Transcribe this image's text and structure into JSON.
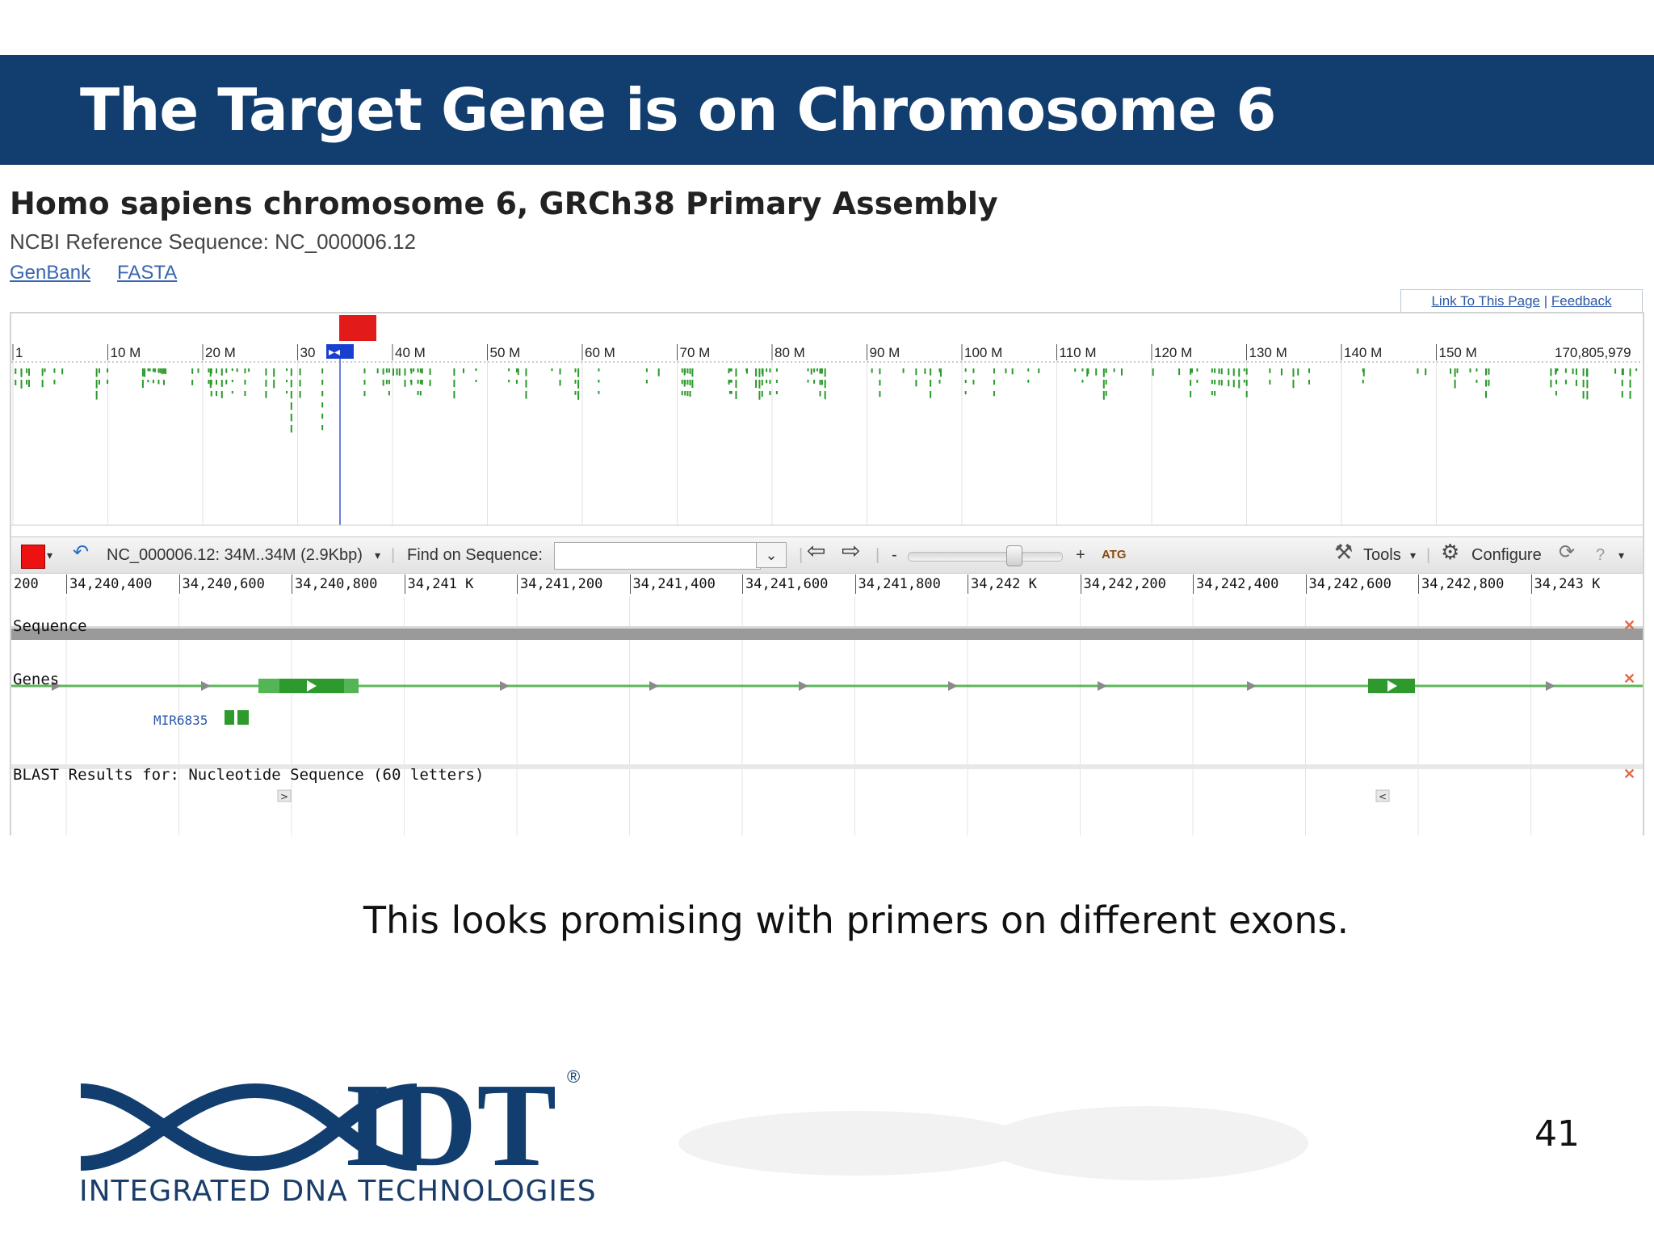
{
  "slide": {
    "title": "The Target Gene is on Chromosome 6",
    "caption": "This looks promising with primers on different exons.",
    "page_number": "41",
    "logo_text": "IDT",
    "logo_sub": "INTEGRATED DNA TECHNOLOGIES",
    "header_color": "#123d6f"
  },
  "ncbi": {
    "title": "Homo sapiens chromosome 6, GRCh38 Primary Assembly",
    "reference": "NCBI Reference Sequence: NC_000006.12",
    "formats": [
      "GenBank",
      "FASTA"
    ],
    "top_links": [
      "Link To This Page",
      "Feedback"
    ]
  },
  "overview": {
    "ticks": [
      "1",
      "10 M",
      "20 M",
      "30",
      "40 M",
      "50 M",
      "60 M",
      "70 M",
      "80 M",
      "90 M",
      "100 M",
      "110 M",
      "120 M",
      "130 M",
      "140 M",
      "150 M",
      "170,805,979"
    ]
  },
  "toolbar": {
    "region": "NC_000006.12: 34M..34M (2.9Kbp)",
    "find_label": "Find on Sequence:",
    "find_value": "",
    "zoom_minus": "-",
    "zoom_plus": "+",
    "atg_label": "ATG",
    "tools_label": "Tools",
    "configure_label": "Configure",
    "help_label": "?"
  },
  "ruler": [
    "200",
    "34,240,400",
    "34,240,600",
    "34,240,800",
    "34,241 K",
    "34,241,200",
    "34,241,400",
    "34,241,600",
    "34,241,800",
    "34,242 K",
    "34,242,200",
    "34,242,400",
    "34,242,600",
    "34,242,800",
    "34,243 K"
  ],
  "tracks": {
    "sequence": "Sequence",
    "genes": "Genes",
    "gene_label": "MIR6835",
    "blast": "BLAST Results for: Nucleotide Sequence (60 letters)"
  },
  "icons": [
    "dropdown-arrow-icon",
    "undo-icon",
    "back-arrow-icon",
    "forward-arrow-icon",
    "atg-icon",
    "tools-icon",
    "gear-icon",
    "refresh-icon",
    "help-icon",
    "close-icon"
  ]
}
